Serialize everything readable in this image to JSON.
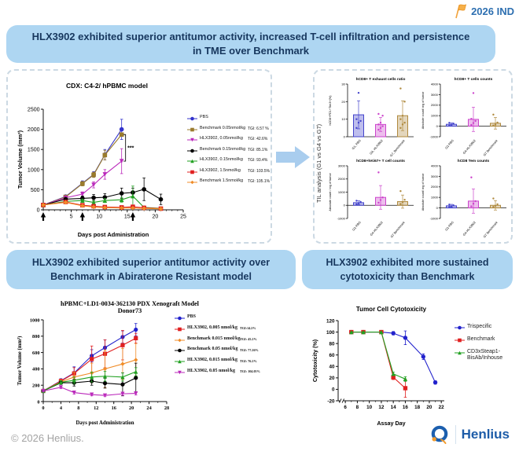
{
  "header": {
    "ind_label": "2026 IND"
  },
  "banners": {
    "main": "HLX3902 exhibited superior antitumor activity, increased T-cell infiltration and persistence in TME over Benchmark",
    "abiraterone": "HLX3902 exhibited superior antitumor activity over Benchmark in Abiraterone Resistant model",
    "cytotoxicity": "HLX3902 exhibited more sustained cytotoxicity than Benchmark"
  },
  "til_panel": {
    "side_label": "TIL analysis (G1 vs G4 vs G7)"
  },
  "footer": {
    "copyright": "© 2026 Henlius.",
    "logo_text": "Henlius"
  },
  "colors": {
    "banner_bg": "#aed6f2",
    "banner_text": "#17375e",
    "panel_border": "#ccd9e3",
    "flow_arrow": "#a9cdee",
    "flag": "#f2a33c",
    "ind_text": "#2d6fb0",
    "logo_blue": "#1d5ca8",
    "logo_orange": "#f29b2c",
    "copyright_gray": "#a3a3a3"
  },
  "chart_data": [
    {
      "id": "cdx",
      "type": "line",
      "title": "CDX: C4-2/ hPBMC model",
      "xlabel": "Days post Administration",
      "ylabel": "Tumor Volume (mm³)",
      "xlim": [
        0,
        25
      ],
      "ylim": [
        0,
        2500
      ],
      "xticks": [
        5,
        10,
        15,
        20,
        25
      ],
      "yticks": [
        0,
        500,
        1000,
        1500,
        2000,
        2500
      ],
      "arrows": [
        0,
        7,
        16
      ],
      "sig": {
        "label": "***",
        "x": 14.7,
        "y1": 1210,
        "y2": 1870
      },
      "series": [
        {
          "name": "PBS",
          "color": "#3333cc",
          "marker": "circle",
          "x": [
            0,
            4,
            7,
            9,
            11,
            14
          ],
          "y": [
            120,
            330,
            660,
            880,
            1370,
            2000
          ],
          "err": [
            15,
            35,
            60,
            70,
            130,
            250
          ],
          "tgi": ""
        },
        {
          "name": "Benchmark 0.05nmol/kg",
          "color": "#9a7b2d",
          "marker": "square",
          "x": [
            0,
            4,
            7,
            9,
            11,
            14
          ],
          "y": [
            120,
            320,
            650,
            870,
            1360,
            1870
          ],
          "err": [
            15,
            30,
            55,
            65,
            120,
            0
          ],
          "tgi": "TGI: 6.57 %"
        },
        {
          "name": "HLX3902, 0.05nmol/kg",
          "color": "#bb29bb",
          "marker": "tri-down",
          "x": [
            0,
            4,
            7,
            9,
            11,
            14
          ],
          "y": [
            120,
            300,
            390,
            620,
            880,
            1210
          ],
          "err": [
            15,
            35,
            55,
            75,
            120,
            310
          ],
          "tgi": "TGI: 42.6%"
        },
        {
          "name": "Benchmark 0.15nmol/kg",
          "color": "#000000",
          "marker": "circle",
          "x": [
            0,
            4,
            7,
            9,
            11,
            14,
            16,
            18,
            21
          ],
          "y": [
            120,
            265,
            285,
            300,
            310,
            410,
            430,
            510,
            260
          ],
          "err": [
            10,
            30,
            60,
            80,
            90,
            130,
            110,
            280,
            130
          ],
          "tgi": "TGI: 85.1%"
        },
        {
          "name": "HLX3902, 0.15nmol/kg",
          "color": "#22a122",
          "marker": "tri-up",
          "x": [
            0,
            4,
            7,
            9,
            11,
            14,
            16,
            18,
            21
          ],
          "y": [
            120,
            210,
            230,
            185,
            230,
            250,
            340,
            60,
            35
          ],
          "err": [
            10,
            25,
            35,
            40,
            50,
            60,
            250,
            30,
            15
          ],
          "tgi": "TGI: 93.4%"
        },
        {
          "name": "HLX3902, 1.5nmol/kg",
          "color": "#e02020",
          "marker": "square",
          "x": [
            0,
            4,
            7,
            9,
            11,
            14,
            16,
            18,
            21
          ],
          "y": [
            120,
            195,
            115,
            90,
            70,
            60,
            75,
            50,
            30
          ],
          "err": [
            10,
            20,
            25,
            20,
            20,
            20,
            40,
            20,
            10
          ],
          "tgi": "TGI: 103.5%"
        },
        {
          "name": "Benchmark 1.5nmol/kg",
          "color": "#f08c28",
          "marker": "diamond",
          "x": [
            0,
            4,
            7,
            9,
            11,
            14,
            16,
            18,
            21
          ],
          "y": [
            120,
            185,
            100,
            70,
            55,
            45,
            45,
            35,
            25
          ],
          "err": [
            10,
            20,
            20,
            15,
            15,
            15,
            15,
            10,
            10
          ],
          "tgi": "TGI: 105.1%"
        }
      ]
    },
    {
      "id": "exhaust",
      "type": "bar",
      "title": "hCD8+ T exhaust cells ratio",
      "ylabel": "hCD8+PD1+Tim3+(%)",
      "ylim": [
        0,
        30
      ],
      "yticks": [
        0,
        10,
        20,
        30
      ],
      "categories": [
        "G1, PBS",
        "G4, HLX3902",
        "G7, Benchmark"
      ],
      "values": [
        12.5,
        7,
        12
      ],
      "errors": [
        8,
        4,
        8.5
      ],
      "colors": [
        "#4444cc",
        "#cc44cc",
        "#b08a3e"
      ],
      "points": [
        [
          5,
          8,
          9,
          10,
          25
        ],
        [
          4,
          5,
          6,
          7,
          8,
          12,
          13
        ],
        [
          5,
          7,
          8,
          10,
          12,
          20,
          27.5
        ]
      ]
    },
    {
      "id": "cd8",
      "type": "bar",
      "title": "hCD8+ T cells counts",
      "ylabel": "Absolute count/ mg of tumor",
      "ylim": [
        -1000,
        4000
      ],
      "yticks": [
        -1000,
        0,
        1000,
        2000,
        3000,
        4000
      ],
      "categories": [
        "G1-PBS",
        "G4-HLX3902",
        "G7 Benchmark"
      ],
      "values": [
        180,
        650,
        280
      ],
      "errors": [
        140,
        1150,
        550
      ],
      "colors": [
        "#4444cc",
        "#cc44cc",
        "#b08a3e"
      ],
      "points": [
        [
          60,
          150,
          250,
          320
        ],
        [
          120,
          300,
          500,
          700,
          3150
        ],
        [
          60,
          150,
          350,
          1100
        ]
      ]
    },
    {
      "id": "ki67",
      "type": "bar",
      "title": "hCD8+hKi67+ T cell counts",
      "ylabel": "Absolute count / mg of tumor",
      "ylim": [
        -1000,
        3000
      ],
      "yticks": [
        -1000,
        0,
        1000,
        2000,
        3000
      ],
      "categories": [
        "G1-PBS",
        "G4-HLX3902",
        "G7 Benchmark"
      ],
      "values": [
        200,
        600,
        280
      ],
      "errors": [
        140,
        900,
        500
      ],
      "colors": [
        "#4444cc",
        "#cc44cc",
        "#b08a3e"
      ],
      "points": [
        [
          80,
          150,
          260,
          350
        ],
        [
          200,
          400,
          600,
          2500
        ],
        [
          100,
          250,
          420,
          1080
        ]
      ]
    },
    {
      "id": "tem",
      "type": "bar",
      "title": "hCD8 Tem counts",
      "ylabel": "Absolute count/ mg of tumor",
      "ylim": [
        -1000,
        4000
      ],
      "yticks": [
        -1000,
        0,
        1000,
        2000,
        3000,
        4000
      ],
      "categories": [
        "G1-PBS",
        "G4-HLX3902",
        "G7 Benchmark"
      ],
      "values": [
        200,
        650,
        250
      ],
      "errors": [
        140,
        1150,
        450
      ],
      "colors": [
        "#4444cc",
        "#cc44cc",
        "#b08a3e"
      ],
      "points": [
        [
          80,
          160,
          250,
          320
        ],
        [
          150,
          400,
          650,
          2900
        ],
        [
          100,
          200,
          350,
          900
        ]
      ]
    },
    {
      "id": "pdx",
      "type": "line",
      "title": "hPBMC+LD1-0034-362130 PDX Xenograft Model",
      "title2": "Donor73",
      "xlabel": "Days post Administration",
      "ylabel": "Tumor Volume (mm³)",
      "xlim": [
        0,
        28
      ],
      "ylim": [
        0,
        1000
      ],
      "xticks": [
        0,
        4,
        8,
        12,
        16,
        20,
        24,
        28
      ],
      "yticks": [
        0,
        200,
        400,
        600,
        800,
        1000
      ],
      "series": [
        {
          "name": "PBS",
          "color": "#2222cc",
          "marker": "circle",
          "x": [
            0,
            4,
            7,
            11,
            14,
            18,
            21
          ],
          "y": [
            130,
            255,
            350,
            560,
            660,
            790,
            880
          ],
          "err": [
            10,
            25,
            75,
            75,
            95,
            75,
            75
          ],
          "tgi": ""
        },
        {
          "name": "HLX3902, 0.005 nmol/kg",
          "color": "#e02020",
          "marker": "square",
          "x": [
            0,
            4,
            7,
            11,
            14,
            18,
            21
          ],
          "y": [
            130,
            250,
            345,
            520,
            585,
            690,
            775
          ],
          "err": [
            10,
            25,
            70,
            160,
            170,
            180,
            60
          ],
          "tgi": "TGI:14.2%"
        },
        {
          "name": "Benchmark 0.015 nmol/kg",
          "color": "#f08c28",
          "marker": "diamond",
          "x": [
            0,
            4,
            7,
            11,
            14,
            18,
            21
          ],
          "y": [
            130,
            240,
            300,
            350,
            400,
            460,
            510
          ],
          "err": [
            10,
            20,
            60,
            120,
            230,
            190,
            200
          ],
          "tgi": "TGI: 45.2%"
        },
        {
          "name": "Benchmark 0.05 nmol/kg",
          "color": "#000000",
          "marker": "circle",
          "x": [
            0,
            4,
            7,
            11,
            14,
            18,
            21
          ],
          "y": [
            130,
            230,
            230,
            250,
            225,
            210,
            290
          ],
          "err": [
            10,
            20,
            40,
            50,
            60,
            140,
            180
          ],
          "tgi": "TGI: 77.26%"
        },
        {
          "name": "HLX3902, 0.015 nmol/kg",
          "color": "#22a122",
          "marker": "tri-up",
          "x": [
            0,
            4,
            7,
            11,
            14,
            18,
            21
          ],
          "y": [
            130,
            235,
            260,
            300,
            310,
            300,
            365
          ],
          "err": [
            10,
            20,
            40,
            60,
            60,
            50,
            50
          ],
          "tgi": "TGI: 76.2%"
        },
        {
          "name": "HLX3902, 0.05 nmol/kg",
          "color": "#bb29bb",
          "marker": "tri-down",
          "x": [
            0,
            4,
            7,
            11,
            14,
            18,
            21
          ],
          "y": [
            130,
            175,
            110,
            85,
            75,
            95,
            100
          ],
          "err": [
            8,
            15,
            20,
            15,
            15,
            20,
            20
          ],
          "tgi": "TGI: 104.05%"
        }
      ]
    },
    {
      "id": "cytotox",
      "type": "line",
      "title": "Tumor Cell Cytotoxicity",
      "xlabel": "Assay Day",
      "ylabel": "Cytotoxicity (%)",
      "xlim": [
        4.8,
        22.5
      ],
      "ylim": [
        -20,
        120
      ],
      "xticks": [
        6,
        8,
        10,
        12,
        14,
        16,
        18,
        20,
        22
      ],
      "yticks": [
        -20,
        0,
        20,
        40,
        60,
        80,
        100,
        120
      ],
      "xbreak": 5.4,
      "series": [
        {
          "name": "Trispecific",
          "color": "#2222cc",
          "marker": "circle",
          "x": [
            7,
            9,
            12,
            14,
            16,
            19,
            21
          ],
          "y": [
            100,
            100,
            100,
            98,
            90,
            57,
            12
          ],
          "err": [
            0,
            0,
            0,
            3,
            12,
            5,
            3
          ]
        },
        {
          "name": "Benchmark",
          "color": "#e02020",
          "marker": "square",
          "x": [
            7,
            9,
            12,
            14,
            16
          ],
          "y": [
            100,
            100,
            100,
            21,
            2
          ],
          "err": [
            0,
            0,
            0,
            4,
            16
          ]
        },
        {
          "name": "CD3xSteap1-BisAb/Inhouse",
          "color": "#22a122",
          "marker": "tri-up",
          "x": [
            7,
            9,
            12,
            14,
            16
          ],
          "y": [
            100,
            100,
            100,
            27,
            18
          ],
          "err": [
            0,
            0,
            0,
            3,
            4
          ]
        }
      ]
    }
  ]
}
